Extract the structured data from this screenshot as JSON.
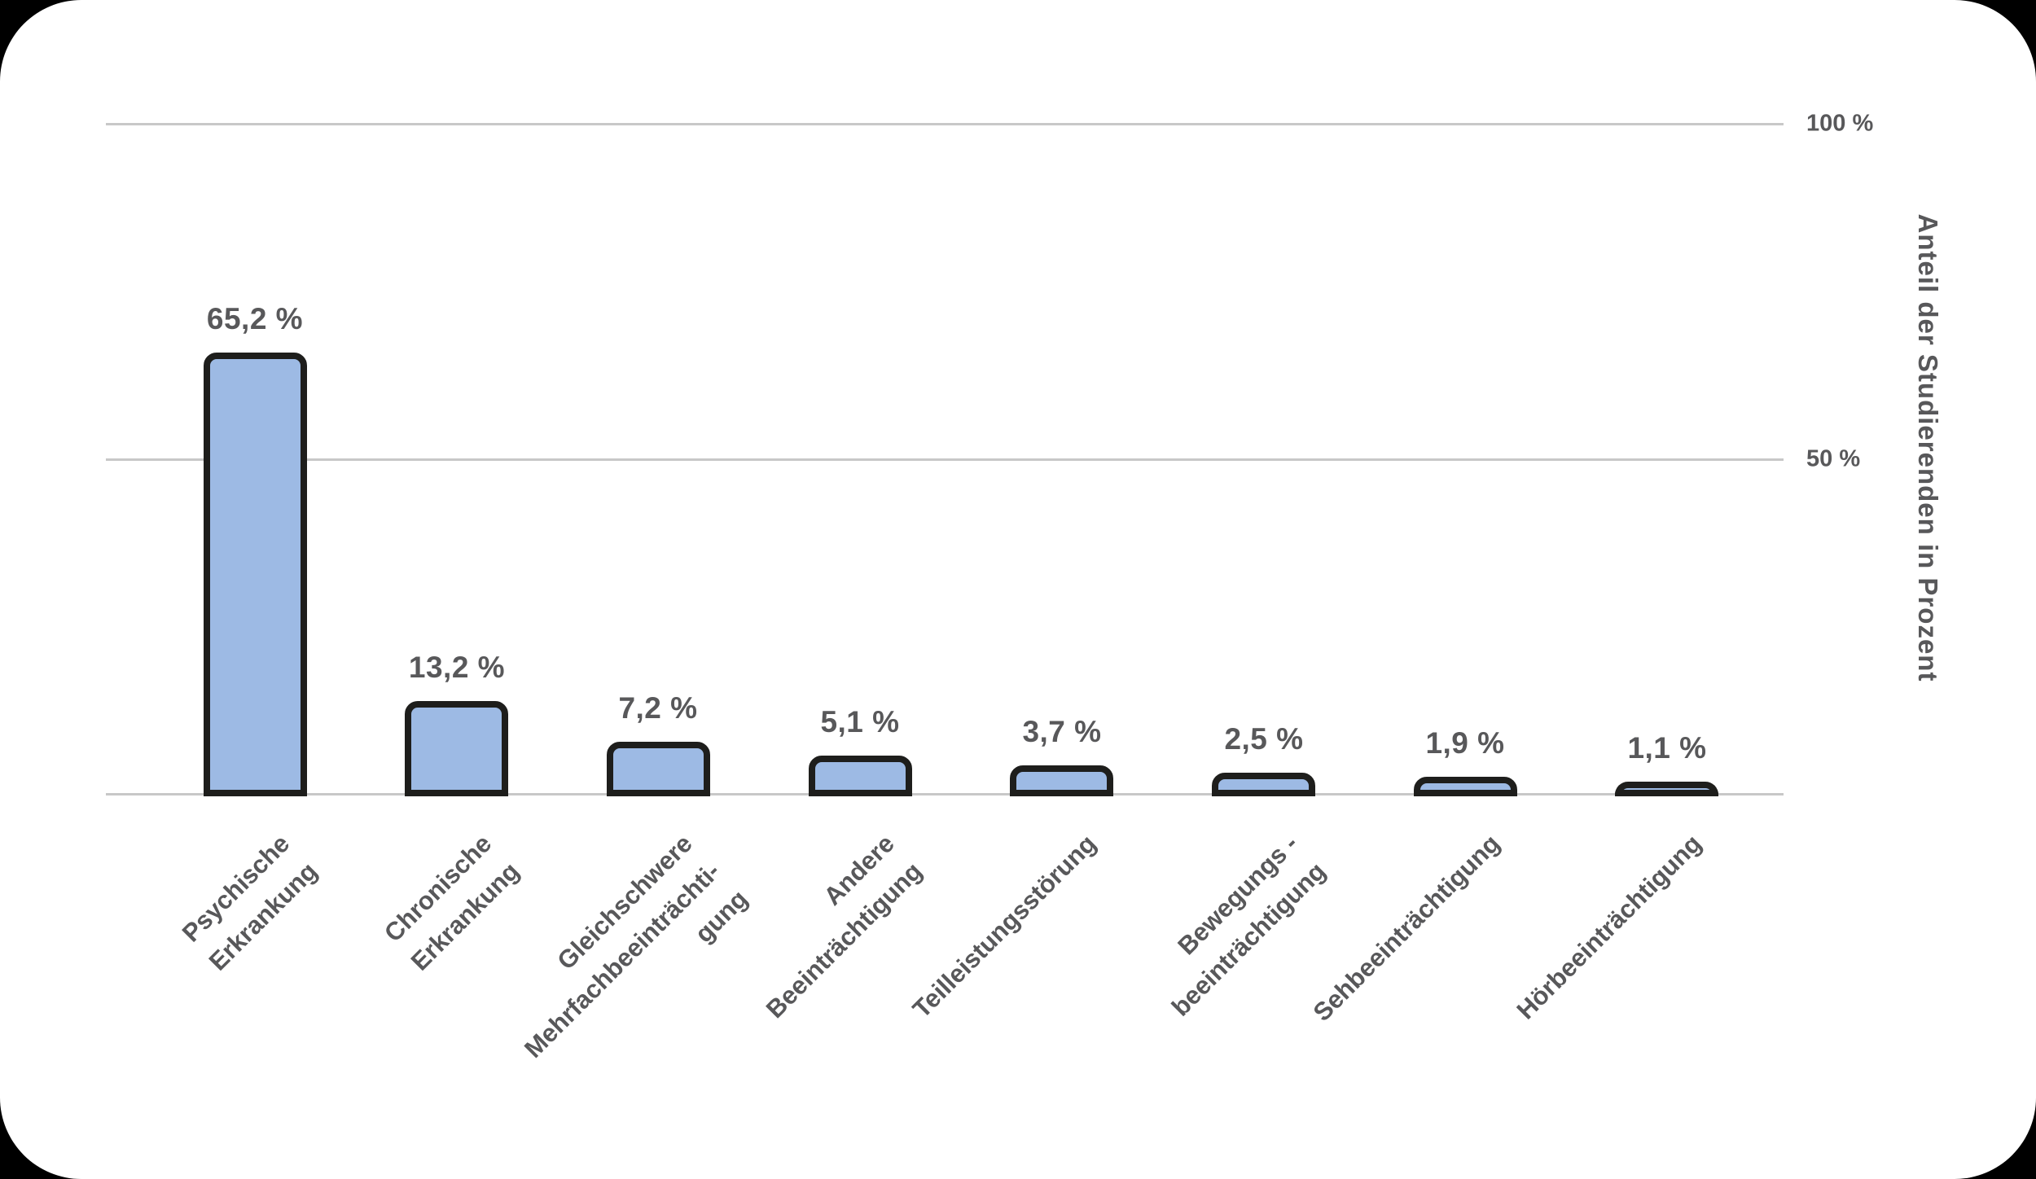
{
  "chart_data": {
    "type": "bar",
    "title": "",
    "ylabel": "Anteil der Studierenden in Prozent",
    "ylim": [
      0,
      100
    ],
    "grid": true,
    "legend": false,
    "yticks": [
      {
        "value": 100,
        "label": "100 %"
      },
      {
        "value": 50,
        "label": "50 %"
      }
    ],
    "categories": [
      "Psychische\nErkrankung",
      "Chronische\nErkrankung",
      "Gleichschwere\nMehrfachbeeinträchti-\ngung",
      "Andere\nBeeinträchtigung",
      "Teilleistungsstörung",
      "Bewegungs -\nbeeinträchtigung",
      "Sehbeeinträchtigung",
      "Hörbeeinträchtigung"
    ],
    "values": [
      65.2,
      13.2,
      7.2,
      5.1,
      3.7,
      2.5,
      1.9,
      1.1
    ],
    "value_labels": [
      "65,2 %",
      "13,2 %",
      "7,2 %",
      "5,1 %",
      "3,7 %",
      "2,5 %",
      "1,9 %",
      "1,1 %"
    ],
    "colors": {
      "bar_fill": "#9dbae4",
      "bar_border": "#1e1e1c",
      "gridline": "#c8c8c8",
      "text": "#58585a",
      "card_background": "#ffffff",
      "page_frame": "#000000"
    }
  }
}
